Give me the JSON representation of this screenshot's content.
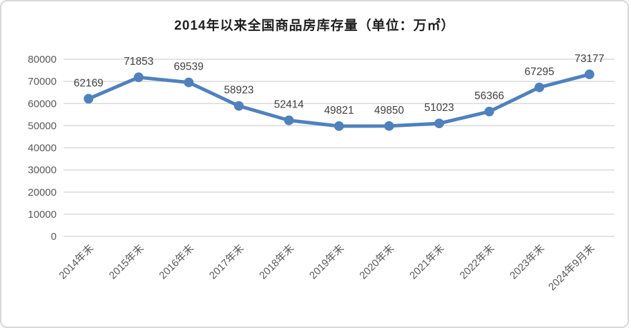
{
  "chart_data": {
    "type": "line",
    "title": "2014年以来全国商品房库存量（单位：万㎡）",
    "categories": [
      "2014年末",
      "2015年末",
      "2016年末",
      "2017年末",
      "2018年末",
      "2019年末",
      "2020年末",
      "2021年末",
      "2022年末",
      "2023年末",
      "2024年9月末"
    ],
    "values": [
      62169,
      71853,
      69539,
      58923,
      52414,
      49821,
      49850,
      51023,
      56366,
      67295,
      73177
    ],
    "xlabel": "",
    "ylabel": "",
    "ylim": [
      0,
      80000
    ],
    "yticks": [
      0,
      10000,
      20000,
      30000,
      40000,
      50000,
      60000,
      70000,
      80000
    ],
    "grid": true,
    "legend": "none",
    "data_labels": true,
    "colors": {
      "line": "#4f81bd",
      "marker": "#4f81bd",
      "grid": "#d9d9d9",
      "axis_text": "#595959",
      "data_label": "#3f3f3f",
      "title": "#1f1f1f",
      "border": "#d8d8d8"
    }
  }
}
